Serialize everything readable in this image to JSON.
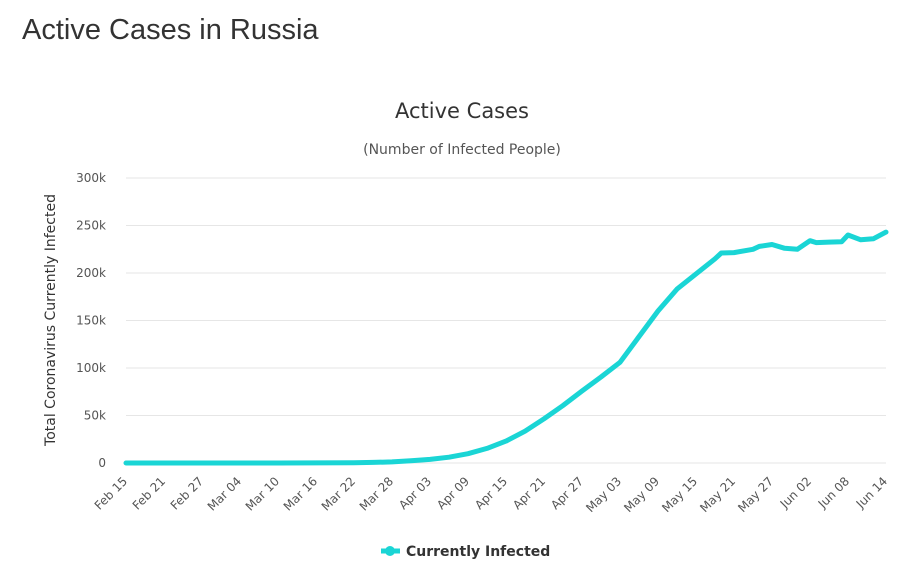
{
  "page": {
    "title": "Active Cases in Russia"
  },
  "chart_data": {
    "type": "line",
    "title": "Active Cases",
    "subtitle": "(Number of Infected People)",
    "xlabel": "",
    "ylabel": "Total Coronavirus Currently Infected",
    "ylim": [
      0,
      300000
    ],
    "yticks": [
      0,
      50000,
      100000,
      150000,
      200000,
      250000,
      300000
    ],
    "ytick_labels": [
      "0",
      "50k",
      "100k",
      "150k",
      "200k",
      "250k",
      "300k"
    ],
    "xtick_labels": [
      "Feb 15",
      "Feb 21",
      "Feb 27",
      "Mar 04",
      "Mar 10",
      "Mar 16",
      "Mar 22",
      "Mar 28",
      "Apr 03",
      "Apr 09",
      "Apr 15",
      "Apr 21",
      "Apr 27",
      "May 03",
      "May 09",
      "May 15",
      "May 21",
      "May 27",
      "Jun 02",
      "Jun 08",
      "Jun 14"
    ],
    "grid": true,
    "legend": "bottom-center",
    "colors": {
      "series": "#1ad5d5",
      "grid": "#e6e6e6",
      "text": "#555555"
    },
    "x": [
      "Feb 15",
      "Feb 21",
      "Feb 27",
      "Mar 04",
      "Mar 10",
      "Mar 16",
      "Mar 22",
      "Mar 25",
      "Mar 28",
      "Mar 31",
      "Apr 03",
      "Apr 06",
      "Apr 09",
      "Apr 12",
      "Apr 15",
      "Apr 18",
      "Apr 21",
      "Apr 24",
      "Apr 27",
      "Apr 30",
      "May 03",
      "May 06",
      "May 09",
      "May 12",
      "May 15",
      "May 18",
      "May 19",
      "May 21",
      "May 24",
      "May 25",
      "May 27",
      "May 29",
      "May 31",
      "Jun 02",
      "Jun 03",
      "Jun 05",
      "Jun 07",
      "Jun 08",
      "Jun 10",
      "Jun 12",
      "Jun 14"
    ],
    "series": [
      {
        "name": "Currently Infected",
        "values": [
          2,
          2,
          2,
          3,
          15,
          60,
          300,
          650,
          1200,
          2300,
          3800,
          6100,
          9800,
          15400,
          23000,
          33500,
          46500,
          60500,
          75800,
          90500,
          106000,
          133000,
          160000,
          183000,
          199000,
          215000,
          221000,
          221500,
          225000,
          228000,
          230000,
          226000,
          225000,
          234000,
          232000,
          232500,
          233000,
          240000,
          235000,
          236000,
          243000
        ]
      }
    ]
  }
}
